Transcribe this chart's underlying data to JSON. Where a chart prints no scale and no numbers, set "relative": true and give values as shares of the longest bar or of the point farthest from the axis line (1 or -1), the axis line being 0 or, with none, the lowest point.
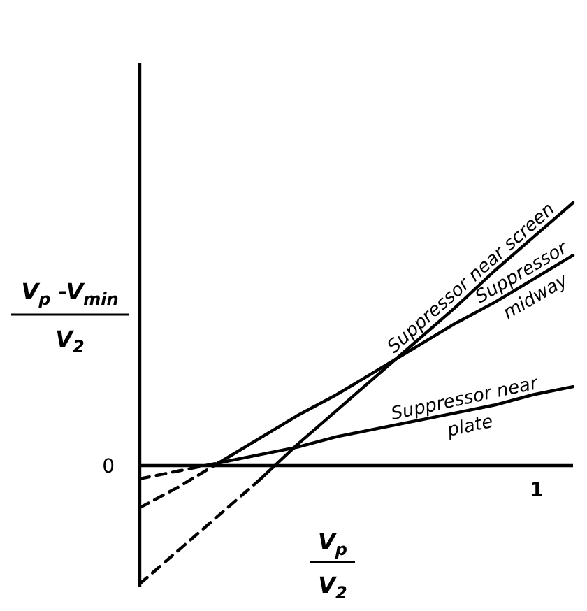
{
  "chart_data": {
    "type": "line",
    "relative": true,
    "xlabel": "V$_{p}$\nV$_{2}$",
    "ylabel": "V$_{p}$ -V$_{min}$\nV$_{2}$",
    "annotations": [
      "0",
      "1"
    ],
    "categories": [
      null,
      null,
      null,
      null,
      null,
      null,
      null,
      null,
      null,
      null,
      null,
      null
    ],
    "series": [
      {
        "color": "#000000",
        "line_style": "dashed",
        "values": [
          -0.45,
          -0.32,
          -0.19,
          -0.06,
          null,
          null,
          null,
          null,
          null,
          null,
          null,
          null
        ]
      },
      {
        "name": "Suppressor near screen",
        "color": "#000000",
        "line_style": "solid",
        "values": [
          null,
          null,
          null,
          -0.06,
          0.08,
          0.21,
          0.34,
          0.47,
          0.6,
          0.74,
          0.87,
          1
        ]
      },
      {
        "color": "#000000",
        "line_style": "dashed",
        "values": [
          -0.16,
          -0.08,
          0.01,
          null,
          null,
          null,
          null,
          null,
          null,
          null,
          null,
          null
        ]
      },
      {
        "name": "Suppressor\nmidway",
        "color": "#000000",
        "line_style": "solid",
        "values": [
          null,
          null,
          0.01,
          0.1,
          0.19,
          0.27,
          0.36,
          0.45,
          0.54,
          0.62,
          0.71,
          0.8
        ]
      },
      {
        "color": "#000000",
        "line_style": "dashed",
        "values": [
          -0.05,
          -0.02,
          0.01,
          null,
          null,
          null,
          null,
          null,
          null,
          null,
          null,
          null
        ]
      },
      {
        "name": "Suppressor near\nplate",
        "color": "#000000",
        "line_style": "solid",
        "values": [
          null,
          null,
          0.01,
          0.04,
          0.07,
          0.11,
          0.14,
          0.17,
          0.2,
          0.23,
          0.27,
          0.3
        ]
      }
    ]
  }
}
